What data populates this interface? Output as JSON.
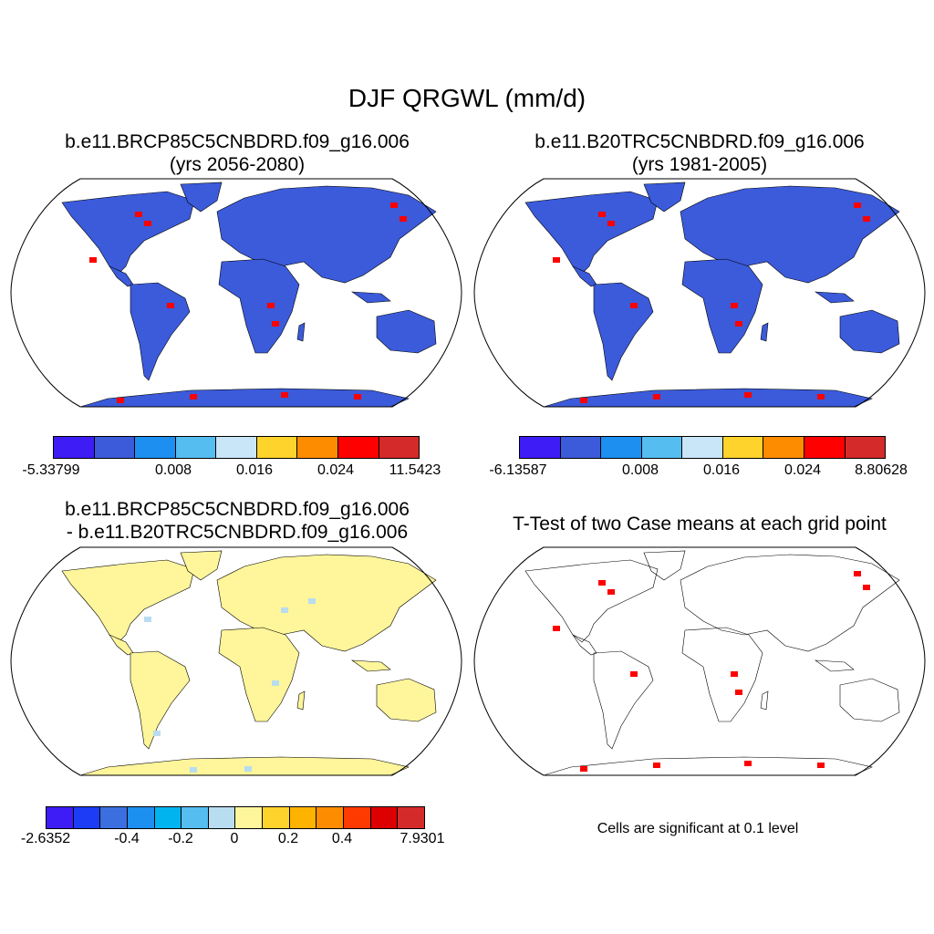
{
  "title": "DJF QRGWL (mm/d)",
  "panels": [
    {
      "line1": "b.e11.BRCP85C5CNBDRD.f09_g16.006",
      "line2": "(yrs 2056-2080)"
    },
    {
      "line1": "b.e11.B20TRC5CNBDRD.f09_g16.006",
      "line2": "(yrs 1981-2005)"
    },
    {
      "line1": "b.e11.BRCP85C5CNBDRD.f09_g16.006",
      "line2": "- b.e11.B20TRC5CNBDRD.f09_g16.006"
    },
    {
      "line1": "T-Test of two Case means at each grid point"
    }
  ],
  "colorbars": [
    {
      "colors": [
        "#3d1cf5",
        "#3b5bdb",
        "#1c8ff0",
        "#55bdf0",
        "#c8e6f8",
        "#fdd32c",
        "#fd8c00",
        "#fe0000",
        "#d42a2a"
      ],
      "labels": [
        "-5.33799",
        "0.008",
        "0.016",
        "0.024",
        "11.5423"
      ]
    },
    {
      "colors": [
        "#3d1cf5",
        "#3b5bdb",
        "#1c8ff0",
        "#55bdf0",
        "#c8e6f8",
        "#fdd32c",
        "#fd8c00",
        "#fe0000",
        "#d42a2a"
      ],
      "labels": [
        "-6.13587",
        "0.008",
        "0.016",
        "0.024",
        "8.80628"
      ]
    },
    {
      "colors": [
        "#3d1cf5",
        "#1c3cf5",
        "#3b6fe0",
        "#1c8ff0",
        "#00b4f0",
        "#55bdf0",
        "#b8dcf0",
        "#fff59a",
        "#fdd32c",
        "#fdb300",
        "#fd8c00",
        "#fe3a00",
        "#dc0000",
        "#d42a2a"
      ],
      "labels": [
        "-2.6352",
        "-0.4",
        "-0.2",
        "0",
        "0.2",
        "0.4",
        "7.9301"
      ]
    }
  ],
  "note": "Cells are significant at 0.1 level",
  "map_fills": {
    "panel1": "#3b5bdb",
    "panel2": "#3b5bdb",
    "panel3": "#fff59a",
    "panel4": "none"
  }
}
